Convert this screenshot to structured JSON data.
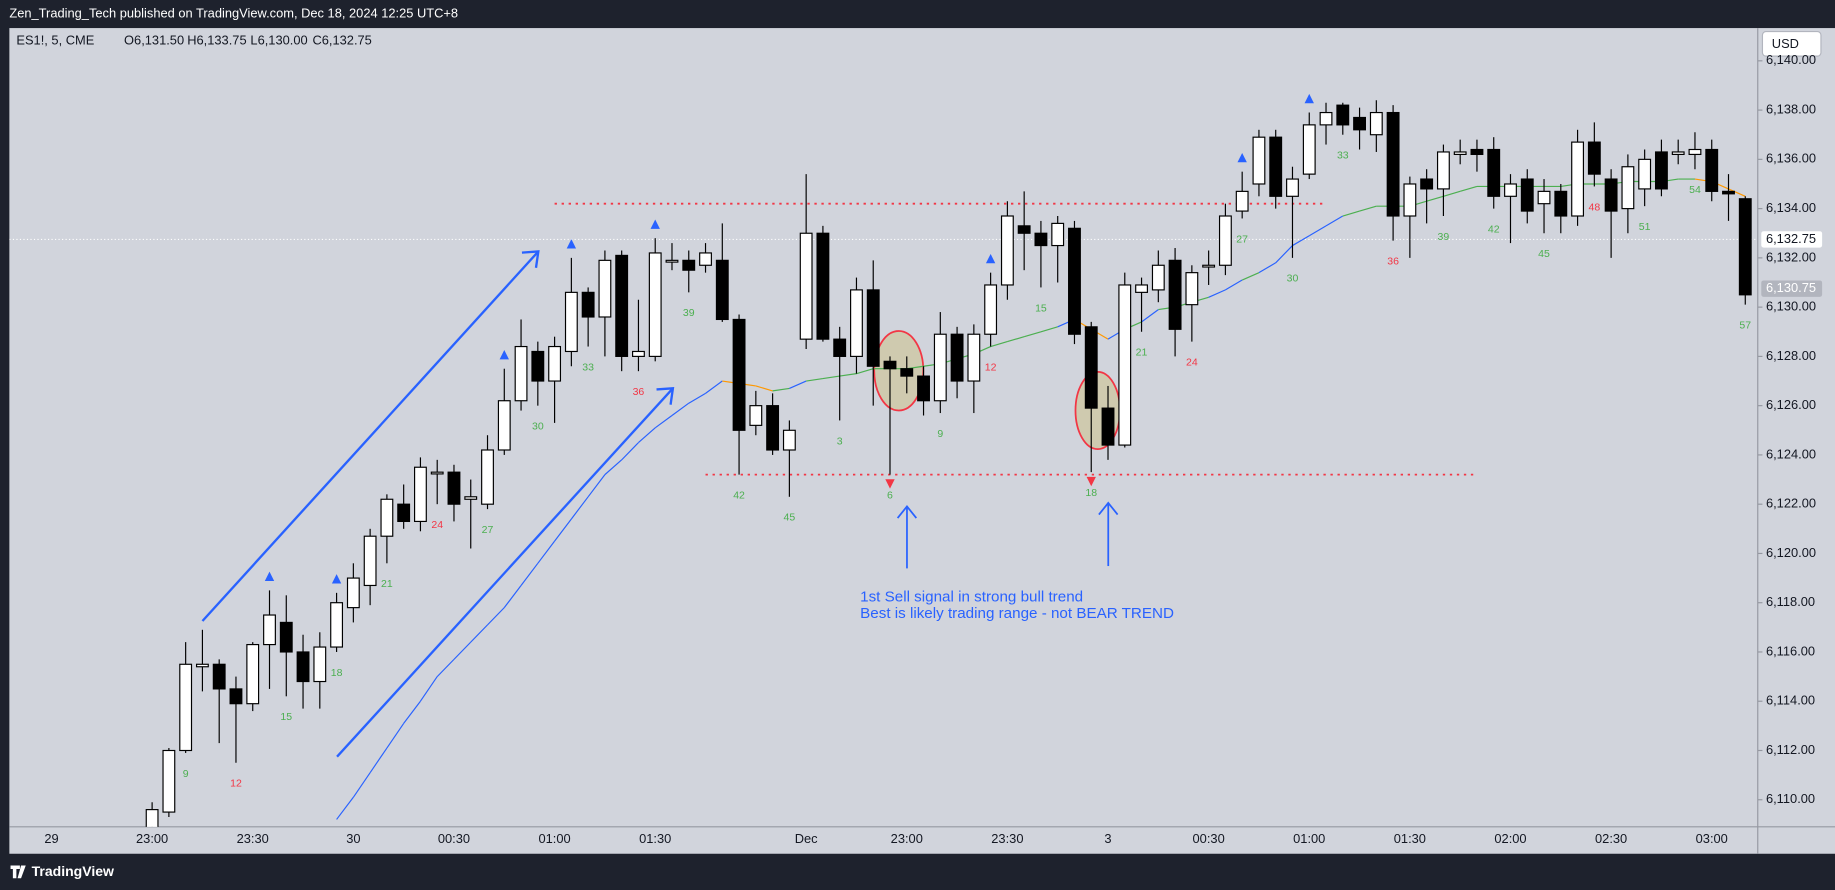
{
  "chart_data": {
    "type": "candlestick",
    "header": "Zen_Trading_Tech published on TradingView.com, Dec 18, 2024 12:25 UTC+8",
    "legend": {
      "symbol": "ES1!, 5, CME",
      "open": "O6,131.50",
      "high": "H6,133.75",
      "low": "L6,130.00",
      "close": "C6,132.75"
    },
    "currency": "USD",
    "footer": "TradingView",
    "annotation": [
      "1st Sell signal in strong bull trend",
      "Best is likely trading range - not BEAR TREND"
    ],
    "categories": [
      "29",
      null,
      null,
      null,
      null,
      null,
      "23:00",
      null,
      null,
      null,
      null,
      null,
      "23:30",
      null,
      null,
      null,
      null,
      null,
      "30",
      null,
      null,
      null,
      null,
      null,
      "00:30",
      null,
      null,
      null,
      null,
      null,
      "01:00",
      null,
      null,
      null,
      null,
      null,
      "01:30",
      null,
      null,
      null,
      null,
      null,
      null,
      null,
      null,
      "Dec",
      null,
      null,
      null,
      null,
      null,
      "23:00",
      null,
      null,
      null,
      null,
      null,
      "23:30",
      null,
      null,
      null,
      null,
      null,
      "3",
      null,
      null,
      null,
      null,
      null,
      "00:30",
      null,
      null,
      null,
      null,
      null,
      "01:00",
      null,
      null,
      null,
      null,
      null,
      "01:30",
      null,
      null,
      null,
      null,
      null,
      "02:00",
      null,
      null,
      null,
      null,
      null,
      "02:30",
      null,
      null,
      null,
      null,
      null,
      "03:00",
      null,
      null
    ],
    "open": [
      null,
      null,
      null,
      null,
      null,
      null,
      6108.5,
      6109.5,
      6112.0,
      6115.4,
      6115.5,
      6114.5,
      6113.9,
      6116.3,
      6117.2,
      6116.0,
      6114.8,
      6116.2,
      6117.8,
      6118.7,
      6120.7,
      6122.0,
      6121.3,
      6123.3,
      6123.3,
      6122.2,
      6122.0,
      6124.2,
      6126.2,
      6128.2,
      6127.0,
      6128.2,
      6130.6,
      6129.6,
      6132.1,
      6128.0,
      6128.0,
      6131.9,
      6131.9,
      6131.7,
      6131.9,
      6129.5,
      6125.2,
      6126.0,
      6124.2,
      6128.7,
      6133.0,
      6128.7,
      6128.0,
      6130.7,
      6127.8,
      6127.5,
      6127.2,
      6126.2,
      6128.9,
      6127.0,
      6128.9,
      6130.9,
      6133.3,
      6133.0,
      6132.5,
      6133.2,
      6129.2,
      6125.9,
      6124.4,
      6130.6,
      6130.7,
      6131.9,
      6130.1,
      6131.7,
      6131.7,
      6133.9,
      6135.0,
      6136.9,
      6134.5,
      6135.4,
      6137.4,
      6138.2,
      6137.7,
      6137.0,
      6137.9,
      6133.7,
      6135.2,
      6134.8,
      6136.2,
      6136.4,
      6136.4,
      6134.5,
      6135.2,
      6134.2,
      6134.7,
      6133.7,
      6136.7,
      6135.2,
      6134.0,
      6134.8,
      6136.3,
      6136.2,
      6136.2,
      6136.4,
      6134.7,
      6134.4
    ],
    "high": [
      null,
      null,
      null,
      null,
      null,
      null,
      6109.9,
      6112.1,
      6116.4,
      6116.9,
      6115.7,
      6115.0,
      6116.4,
      6118.5,
      6118.3,
      6116.7,
      6116.8,
      6118.4,
      6119.6,
      6121.0,
      6122.4,
      6122.8,
      6123.9,
      6123.8,
      6123.6,
      6123.0,
      6124.8,
      6127.5,
      6129.5,
      6128.6,
      6128.8,
      6132.0,
      6130.8,
      6132.3,
      6132.3,
      6130.3,
      6132.8,
      6132.6,
      6132.3,
      6132.6,
      6133.4,
      6129.7,
      6126.6,
      6126.5,
      6125.4,
      6135.4,
      6133.3,
      6129.2,
      6131.2,
      6131.9,
      6128.0,
      6128.0,
      6127.6,
      6129.8,
      6129.2,
      6129.3,
      6131.4,
      6134.3,
      6134.7,
      6133.5,
      6133.7,
      6133.5,
      6129.4,
      6126.8,
      6131.4,
      6131.2,
      6132.3,
      6132.4,
      6131.7,
      6132.3,
      6134.2,
      6135.5,
      6137.2,
      6137.2,
      6135.7,
      6137.9,
      6138.3,
      6138.3,
      6138.1,
      6138.4,
      6138.2,
      6135.3,
      6135.6,
      6136.6,
      6136.8,
      6136.8,
      6136.9,
      6135.4,
      6135.6,
      6135.2,
      6135.0,
      6137.2,
      6137.5,
      6135.6,
      6136.2,
      6136.4,
      6136.8,
      6136.8,
      6137.1,
      6136.8,
      6135.4,
      6134.5
    ],
    "low": [
      null,
      null,
      null,
      null,
      null,
      null,
      6108.0,
      6109.3,
      6111.9,
      6114.4,
      6112.3,
      6111.5,
      6113.6,
      6114.5,
      6114.2,
      6113.7,
      6113.7,
      6116.0,
      6117.2,
      6117.9,
      6119.6,
      6121.0,
      6120.9,
      6122.0,
      6121.3,
      6120.2,
      6121.8,
      6124.0,
      6125.8,
      6126.0,
      6125.3,
      6127.6,
      6128.4,
      6128.0,
      6127.4,
      6127.4,
      6127.8,
      6131.5,
      6130.6,
      6131.4,
      6129.4,
      6123.2,
      6124.8,
      6124.0,
      6122.3,
      6128.3,
      6128.6,
      6125.4,
      6127.3,
      6126.0,
      6123.2,
      6126.5,
      6125.6,
      6125.7,
      6126.3,
      6125.7,
      6128.4,
      6130.3,
      6131.5,
      6130.8,
      6131.0,
      6128.5,
      6123.3,
      6123.8,
      6124.3,
      6129.0,
      6130.2,
      6128.0,
      6128.6,
      6130.9,
      6131.3,
      6133.6,
      6134.5,
      6134.0,
      6132.0,
      6135.2,
      6136.6,
      6137.0,
      6136.4,
      6136.3,
      6132.7,
      6132.0,
      6133.4,
      6133.7,
      6135.8,
      6135.5,
      6134.0,
      6132.6,
      6133.4,
      6133.0,
      6133.0,
      6133.3,
      6134.9,
      6132.0,
      6133.0,
      6134.1,
      6134.5,
      6135.8,
      6135.6,
      6134.3,
      6133.5,
      6130.1
    ],
    "close": [
      null,
      null,
      null,
      null,
      null,
      null,
      6109.6,
      6112.0,
      6115.5,
      6115.5,
      6114.5,
      6113.9,
      6116.3,
      6117.5,
      6116.0,
      6114.8,
      6116.2,
      6118.0,
      6119.0,
      6120.7,
      6122.2,
      6121.3,
      6123.5,
      6123.3,
      6122.0,
      6122.3,
      6124.2,
      6126.2,
      6128.4,
      6127.0,
      6128.4,
      6130.6,
      6129.6,
      6131.9,
      6128.0,
      6128.2,
      6132.2,
      6131.9,
      6131.5,
      6132.2,
      6129.5,
      6125.0,
      6126.0,
      6124.2,
      6125.0,
      6133.0,
      6128.7,
      6128.0,
      6130.7,
      6127.6,
      6127.5,
      6127.2,
      6126.2,
      6128.9,
      6127.0,
      6128.9,
      6130.9,
      6133.7,
      6133.0,
      6132.5,
      6133.4,
      6128.9,
      6125.9,
      6124.4,
      6130.9,
      6130.9,
      6131.7,
      6129.1,
      6131.4,
      6131.7,
      6133.7,
      6134.7,
      6136.9,
      6134.5,
      6135.2,
      6137.4,
      6137.9,
      6137.4,
      6137.2,
      6137.9,
      6133.7,
      6135.0,
      6134.8,
      6136.3,
      6136.3,
      6136.2,
      6134.5,
      6135.0,
      6133.9,
      6134.7,
      6133.7,
      6136.7,
      6135.4,
      6133.9,
      6135.7,
      6136.0,
      6134.8,
      6136.3,
      6136.4,
      6134.7,
      6134.6,
      6130.5
    ],
    "ema": [
      null,
      null,
      null,
      null,
      null,
      null,
      null,
      null,
      null,
      null,
      null,
      null,
      null,
      null,
      null,
      null,
      null,
      6109.2,
      6110.1,
      6111.1,
      6112.1,
      6113.1,
      6114.0,
      6115.0,
      6115.7,
      6116.4,
      6117.1,
      6117.8,
      6118.7,
      6119.6,
      6120.5,
      6121.4,
      6122.3,
      6123.2,
      6123.8,
      6124.5,
      6125.1,
      6125.6,
      6126.1,
      6126.5,
      6127.0,
      6126.9,
      6126.8,
      6126.6,
      6126.7,
      6127.0,
      6127.1,
      6127.2,
      6127.3,
      6127.5,
      6127.5,
      6127.5,
      6127.6,
      6127.7,
      6127.9,
      6128.1,
      6128.4,
      6128.6,
      6128.8,
      6129.0,
      6129.2,
      6129.5,
      6129.1,
      6128.7,
      6129.1,
      6129.4,
      6129.9,
      6130.0,
      6130.2,
      6130.4,
      6130.7,
      6131.1,
      6131.4,
      6131.8,
      6132.5,
      6132.9,
      6133.3,
      6133.7,
      6133.9,
      6134.1,
      6134.1,
      6134.1,
      6134.3,
      6134.5,
      6134.7,
      6134.9,
      6134.9,
      6134.9,
      6134.9,
      6134.9,
      6134.9,
      6135.0,
      6135.0,
      6135.0,
      6135.1,
      6135.1,
      6135.1,
      6135.2,
      6135.2,
      6135.1,
      6134.8,
      6134.5
    ],
    "ema_colors": {
      "strong": "#2962ff",
      "up": "#4caf50",
      "down": "#ff9800"
    },
    "bar_counts": [
      null,
      null,
      null,
      null,
      null,
      null,
      null,
      null,
      {
        "label": "9",
        "color": "#4caf50"
      },
      null,
      null,
      {
        "label": "12",
        "color": "#f23645"
      },
      null,
      null,
      {
        "label": "15",
        "color": "#4caf50"
      },
      null,
      null,
      {
        "label": "18",
        "color": "#4caf50"
      },
      null,
      null,
      {
        "label": "21",
        "color": "#4caf50"
      },
      null,
      null,
      {
        "label": "24",
        "color": "#f23645"
      },
      null,
      null,
      {
        "label": "27",
        "color": "#4caf50"
      },
      null,
      null,
      {
        "label": "30",
        "color": "#4caf50"
      },
      null,
      null,
      {
        "label": "33",
        "color": "#4caf50"
      },
      null,
      null,
      {
        "label": "36",
        "color": "#f23645"
      },
      null,
      null,
      {
        "label": "39",
        "color": "#4caf50"
      },
      null,
      null,
      {
        "label": "42",
        "color": "#4caf50"
      },
      null,
      null,
      {
        "label": "45",
        "color": "#4caf50"
      },
      null,
      null,
      {
        "label": "3",
        "color": "#4caf50"
      },
      null,
      null,
      {
        "label": "6",
        "color": "#4caf50"
      },
      null,
      null,
      {
        "label": "9",
        "color": "#4caf50"
      },
      null,
      null,
      {
        "label": "12",
        "color": "#f23645"
      },
      null,
      null,
      {
        "label": "15",
        "color": "#4caf50"
      },
      null,
      null,
      {
        "label": "18",
        "color": "#4caf50"
      },
      null,
      null,
      {
        "label": "21",
        "color": "#4caf50"
      },
      null,
      null,
      {
        "label": "24",
        "color": "#f23645"
      },
      null,
      null,
      {
        "label": "27",
        "color": "#4caf50"
      },
      null,
      null,
      {
        "label": "30",
        "color": "#4caf50"
      },
      null,
      null,
      {
        "label": "33",
        "color": "#4caf50"
      },
      null,
      null,
      {
        "label": "36",
        "color": "#f23645"
      },
      null,
      null,
      {
        "label": "39",
        "color": "#4caf50"
      },
      null,
      null,
      {
        "label": "42",
        "color": "#4caf50"
      },
      null,
      null,
      {
        "label": "45",
        "color": "#4caf50"
      },
      null,
      null,
      {
        "label": "48",
        "color": "#f23645"
      },
      null,
      null,
      {
        "label": "51",
        "color": "#4caf50"
      },
      null,
      null,
      {
        "label": "54",
        "color": "#4caf50"
      },
      null,
      null,
      {
        "label": "57",
        "color": "#4caf50"
      }
    ],
    "signals": [
      null,
      null,
      null,
      null,
      null,
      null,
      null,
      null,
      null,
      null,
      null,
      null,
      null,
      "up",
      null,
      null,
      null,
      "up",
      null,
      null,
      null,
      null,
      null,
      null,
      null,
      null,
      null,
      "up",
      null,
      null,
      null,
      "up",
      null,
      null,
      null,
      null,
      "up",
      null,
      null,
      null,
      null,
      null,
      null,
      null,
      null,
      null,
      null,
      null,
      null,
      null,
      "down",
      null,
      null,
      null,
      null,
      null,
      "up",
      null,
      null,
      null,
      null,
      null,
      "down",
      null,
      null,
      null,
      null,
      null,
      null,
      null,
      null,
      "up",
      null,
      null,
      null,
      "up",
      null,
      null,
      null,
      null,
      null,
      null,
      null,
      null,
      null,
      null,
      null,
      null,
      null,
      null,
      null,
      null,
      null,
      null,
      null,
      null,
      null,
      null,
      null,
      null,
      null,
      null
    ],
    "signal_colors": {
      "up": "#2962ff",
      "down": "#f23645"
    },
    "levels": [
      {
        "value": 6134.2,
        "from": 30,
        "to": 76,
        "color": "#f23645"
      },
      {
        "value": 6123.2,
        "from": 39,
        "to": 85,
        "color": "#f23645"
      }
    ],
    "price_tags": [
      {
        "value": 6132.75,
        "label": "6,132.75"
      },
      {
        "value": 6130.75,
        "label": "6,130.75"
      }
    ],
    "ylim": [
      6108.9,
      6141.33
    ],
    "yticks": [
      {
        "value": 6110,
        "label": "6,110.00"
      },
      {
        "value": 6112,
        "label": "6,112.00"
      },
      {
        "value": 6114,
        "label": "6,114.00"
      },
      {
        "value": 6116,
        "label": "6,116.00"
      },
      {
        "value": 6118,
        "label": "6,118.00"
      },
      {
        "value": 6120,
        "label": "6,120.00"
      },
      {
        "value": 6122,
        "label": "6,122.00"
      },
      {
        "value": 6124,
        "label": "6,124.00"
      },
      {
        "value": 6126,
        "label": "6,126.00"
      },
      {
        "value": 6128,
        "label": "6,128.00"
      },
      {
        "value": 6130,
        "label": "6,130.00"
      },
      {
        "value": 6132,
        "label": "6,132.00"
      },
      {
        "value": 6134,
        "label": "6,134.00"
      },
      {
        "value": 6136,
        "label": "6,136.00"
      },
      {
        "value": 6138,
        "label": "6,138.00"
      },
      {
        "value": 6140,
        "label": "6,140.00"
      }
    ]
  }
}
